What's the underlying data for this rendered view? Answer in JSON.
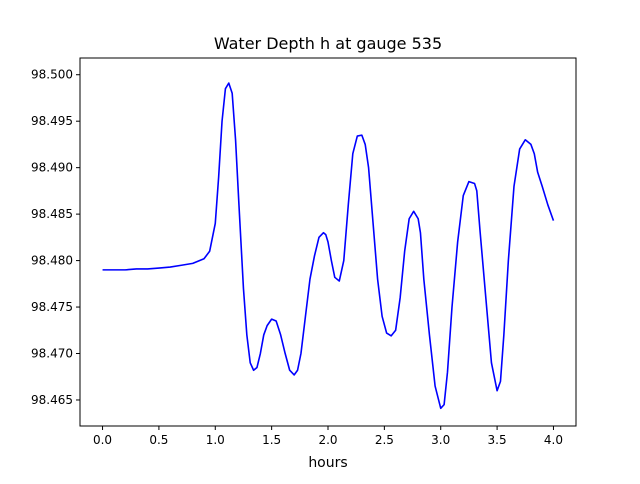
{
  "chart_data": {
    "type": "line",
    "title": "Water Depth h at gauge 535",
    "xlabel": "hours",
    "ylabel": "",
    "xlim": [
      -0.2,
      4.2
    ],
    "ylim": [
      98.4622,
      98.5018
    ],
    "xticks": [
      0.0,
      0.5,
      1.0,
      1.5,
      2.0,
      2.5,
      3.0,
      3.5,
      4.0
    ],
    "xtick_labels": [
      "0.0",
      "0.5",
      "1.0",
      "1.5",
      "2.0",
      "2.5",
      "3.0",
      "3.5",
      "4.0"
    ],
    "yticks": [
      98.465,
      98.47,
      98.475,
      98.48,
      98.485,
      98.49,
      98.495,
      98.5
    ],
    "ytick_labels": [
      "98.465",
      "98.470",
      "98.475",
      "98.480",
      "98.485",
      "98.490",
      "98.495",
      "98.500"
    ],
    "grid": false,
    "series": [
      {
        "color": "#0000ff",
        "x": [
          0.0,
          0.1,
          0.2,
          0.3,
          0.4,
          0.5,
          0.6,
          0.7,
          0.8,
          0.9,
          0.95,
          1.0,
          1.03,
          1.06,
          1.09,
          1.12,
          1.15,
          1.18,
          1.21,
          1.25,
          1.28,
          1.31,
          1.34,
          1.37,
          1.4,
          1.43,
          1.46,
          1.5,
          1.54,
          1.58,
          1.62,
          1.66,
          1.7,
          1.73,
          1.76,
          1.8,
          1.84,
          1.88,
          1.92,
          1.96,
          1.98,
          2.0,
          2.03,
          2.06,
          2.1,
          2.14,
          2.18,
          2.22,
          2.26,
          2.3,
          2.33,
          2.36,
          2.4,
          2.44,
          2.48,
          2.52,
          2.56,
          2.6,
          2.64,
          2.68,
          2.72,
          2.76,
          2.8,
          2.82,
          2.85,
          2.9,
          2.95,
          3.0,
          3.03,
          3.06,
          3.1,
          3.15,
          3.2,
          3.25,
          3.3,
          3.32,
          3.35,
          3.4,
          3.45,
          3.5,
          3.53,
          3.56,
          3.6,
          3.65,
          3.7,
          3.75,
          3.8,
          3.83,
          3.86,
          3.9,
          3.95,
          4.0
        ],
        "y": [
          98.479,
          98.479,
          98.479,
          98.4791,
          98.4791,
          98.4792,
          98.4793,
          98.4795,
          98.4797,
          98.4802,
          98.481,
          98.484,
          98.489,
          98.495,
          98.4985,
          98.4991,
          98.498,
          98.493,
          98.486,
          98.477,
          98.472,
          98.469,
          98.4682,
          98.4685,
          98.47,
          98.472,
          98.473,
          98.4737,
          98.4735,
          98.472,
          98.47,
          98.4682,
          98.4677,
          98.4682,
          98.47,
          98.474,
          98.478,
          98.4805,
          98.4825,
          98.483,
          98.4828,
          98.482,
          98.48,
          98.4782,
          98.4778,
          98.48,
          98.486,
          98.4915,
          98.4934,
          98.4935,
          98.4925,
          98.49,
          98.484,
          98.478,
          98.474,
          98.4722,
          98.4719,
          98.4725,
          98.476,
          98.481,
          98.4845,
          98.4853,
          98.4845,
          98.483,
          98.478,
          98.472,
          98.4665,
          98.4641,
          98.4645,
          98.468,
          98.475,
          98.482,
          98.487,
          98.4885,
          98.4883,
          98.4875,
          98.483,
          98.476,
          98.469,
          98.466,
          98.467,
          98.472,
          98.48,
          98.488,
          98.492,
          98.493,
          98.4925,
          98.4915,
          98.4895,
          98.488,
          98.486,
          98.4843
        ]
      }
    ]
  }
}
